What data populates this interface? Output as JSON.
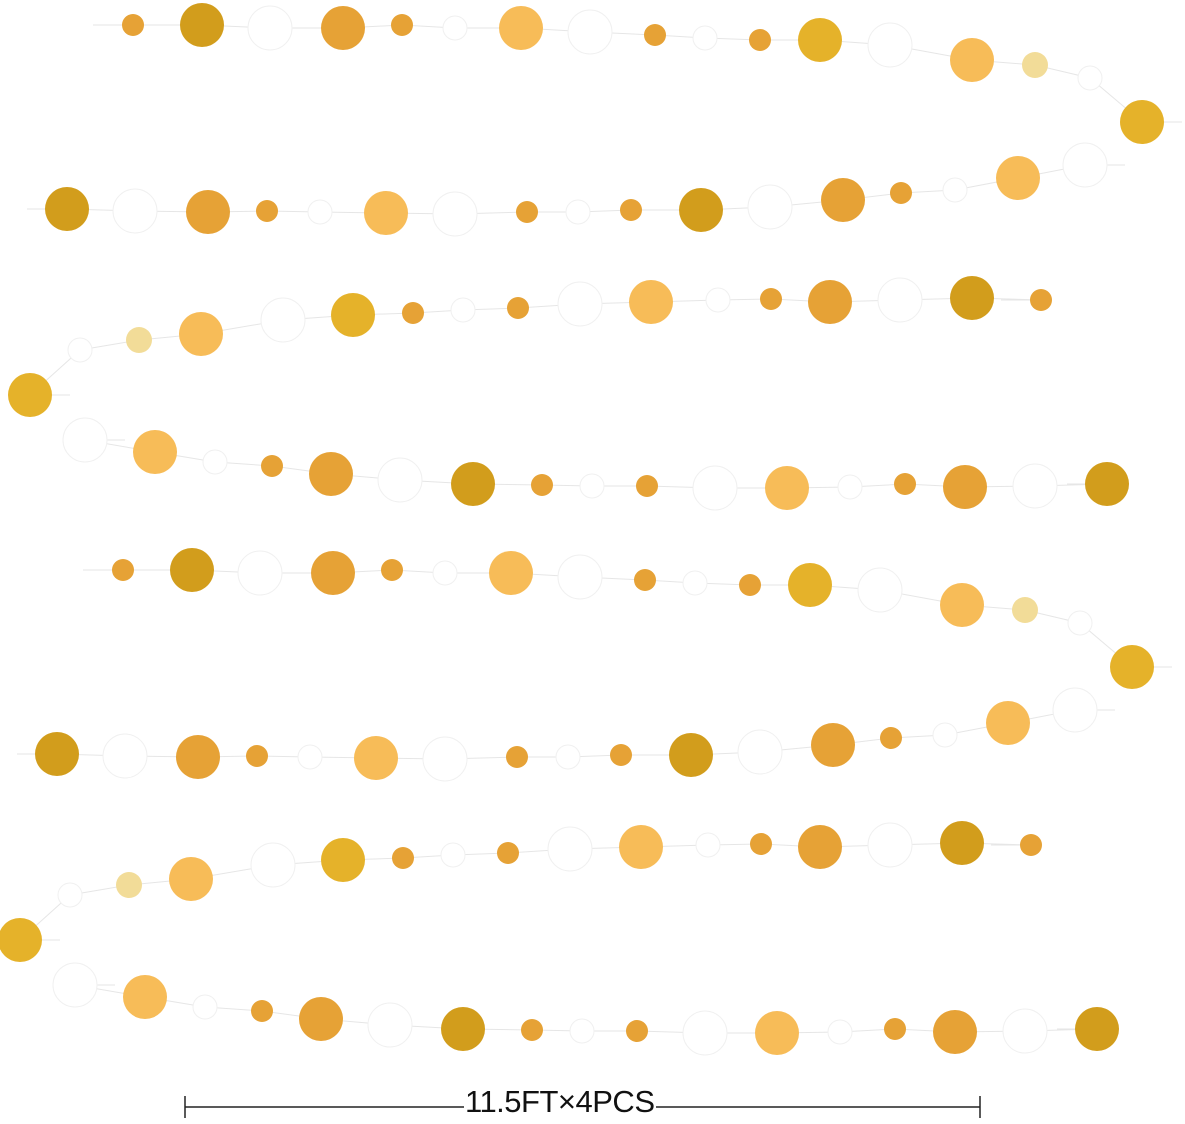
{
  "caption": {
    "text": "11.5FT×4PCS"
  },
  "colors": {
    "dark_gold": "#d29d1c",
    "gold": "#e6a236",
    "light_gold": "#f7bc58",
    "shiny_gold": "#e5b22a",
    "pale_gold": "#f2dc98",
    "white": "#ffffff",
    "string": "#e6e6e6",
    "measure_line": "#222222"
  }
}
